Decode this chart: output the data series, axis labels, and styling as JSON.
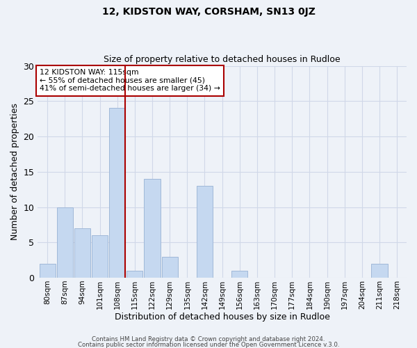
{
  "title": "12, KIDSTON WAY, CORSHAM, SN13 0JZ",
  "subtitle": "Size of property relative to detached houses in Rudloe",
  "xlabel": "Distribution of detached houses by size in Rudloe",
  "ylabel": "Number of detached properties",
  "bar_labels": [
    "80sqm",
    "87sqm",
    "94sqm",
    "101sqm",
    "108sqm",
    "115sqm",
    "122sqm",
    "129sqm",
    "135sqm",
    "142sqm",
    "149sqm",
    "156sqm",
    "163sqm",
    "170sqm",
    "177sqm",
    "184sqm",
    "190sqm",
    "197sqm",
    "204sqm",
    "211sqm",
    "218sqm"
  ],
  "bar_values": [
    2,
    10,
    7,
    6,
    24,
    1,
    14,
    3,
    0,
    13,
    0,
    1,
    0,
    0,
    0,
    0,
    0,
    0,
    0,
    2,
    0
  ],
  "bar_color": "#c5d8f0",
  "bar_edge_color": "#a0b8d8",
  "highlight_index": 4,
  "highlight_line_color": "#aa0000",
  "annotation_box_color": "#ffffff",
  "annotation_box_edge_color": "#aa0000",
  "annotation_line1": "12 KIDSTON WAY: 115sqm",
  "annotation_line2": "← 55% of detached houses are smaller (45)",
  "annotation_line3": "41% of semi-detached houses are larger (34) →",
  "ylim": [
    0,
    30
  ],
  "yticks": [
    0,
    5,
    10,
    15,
    20,
    25,
    30
  ],
  "grid_color": "#d0d8e8",
  "bg_color": "#eef2f8",
  "footer1": "Contains HM Land Registry data © Crown copyright and database right 2024.",
  "footer2": "Contains public sector information licensed under the Open Government Licence v.3.0."
}
